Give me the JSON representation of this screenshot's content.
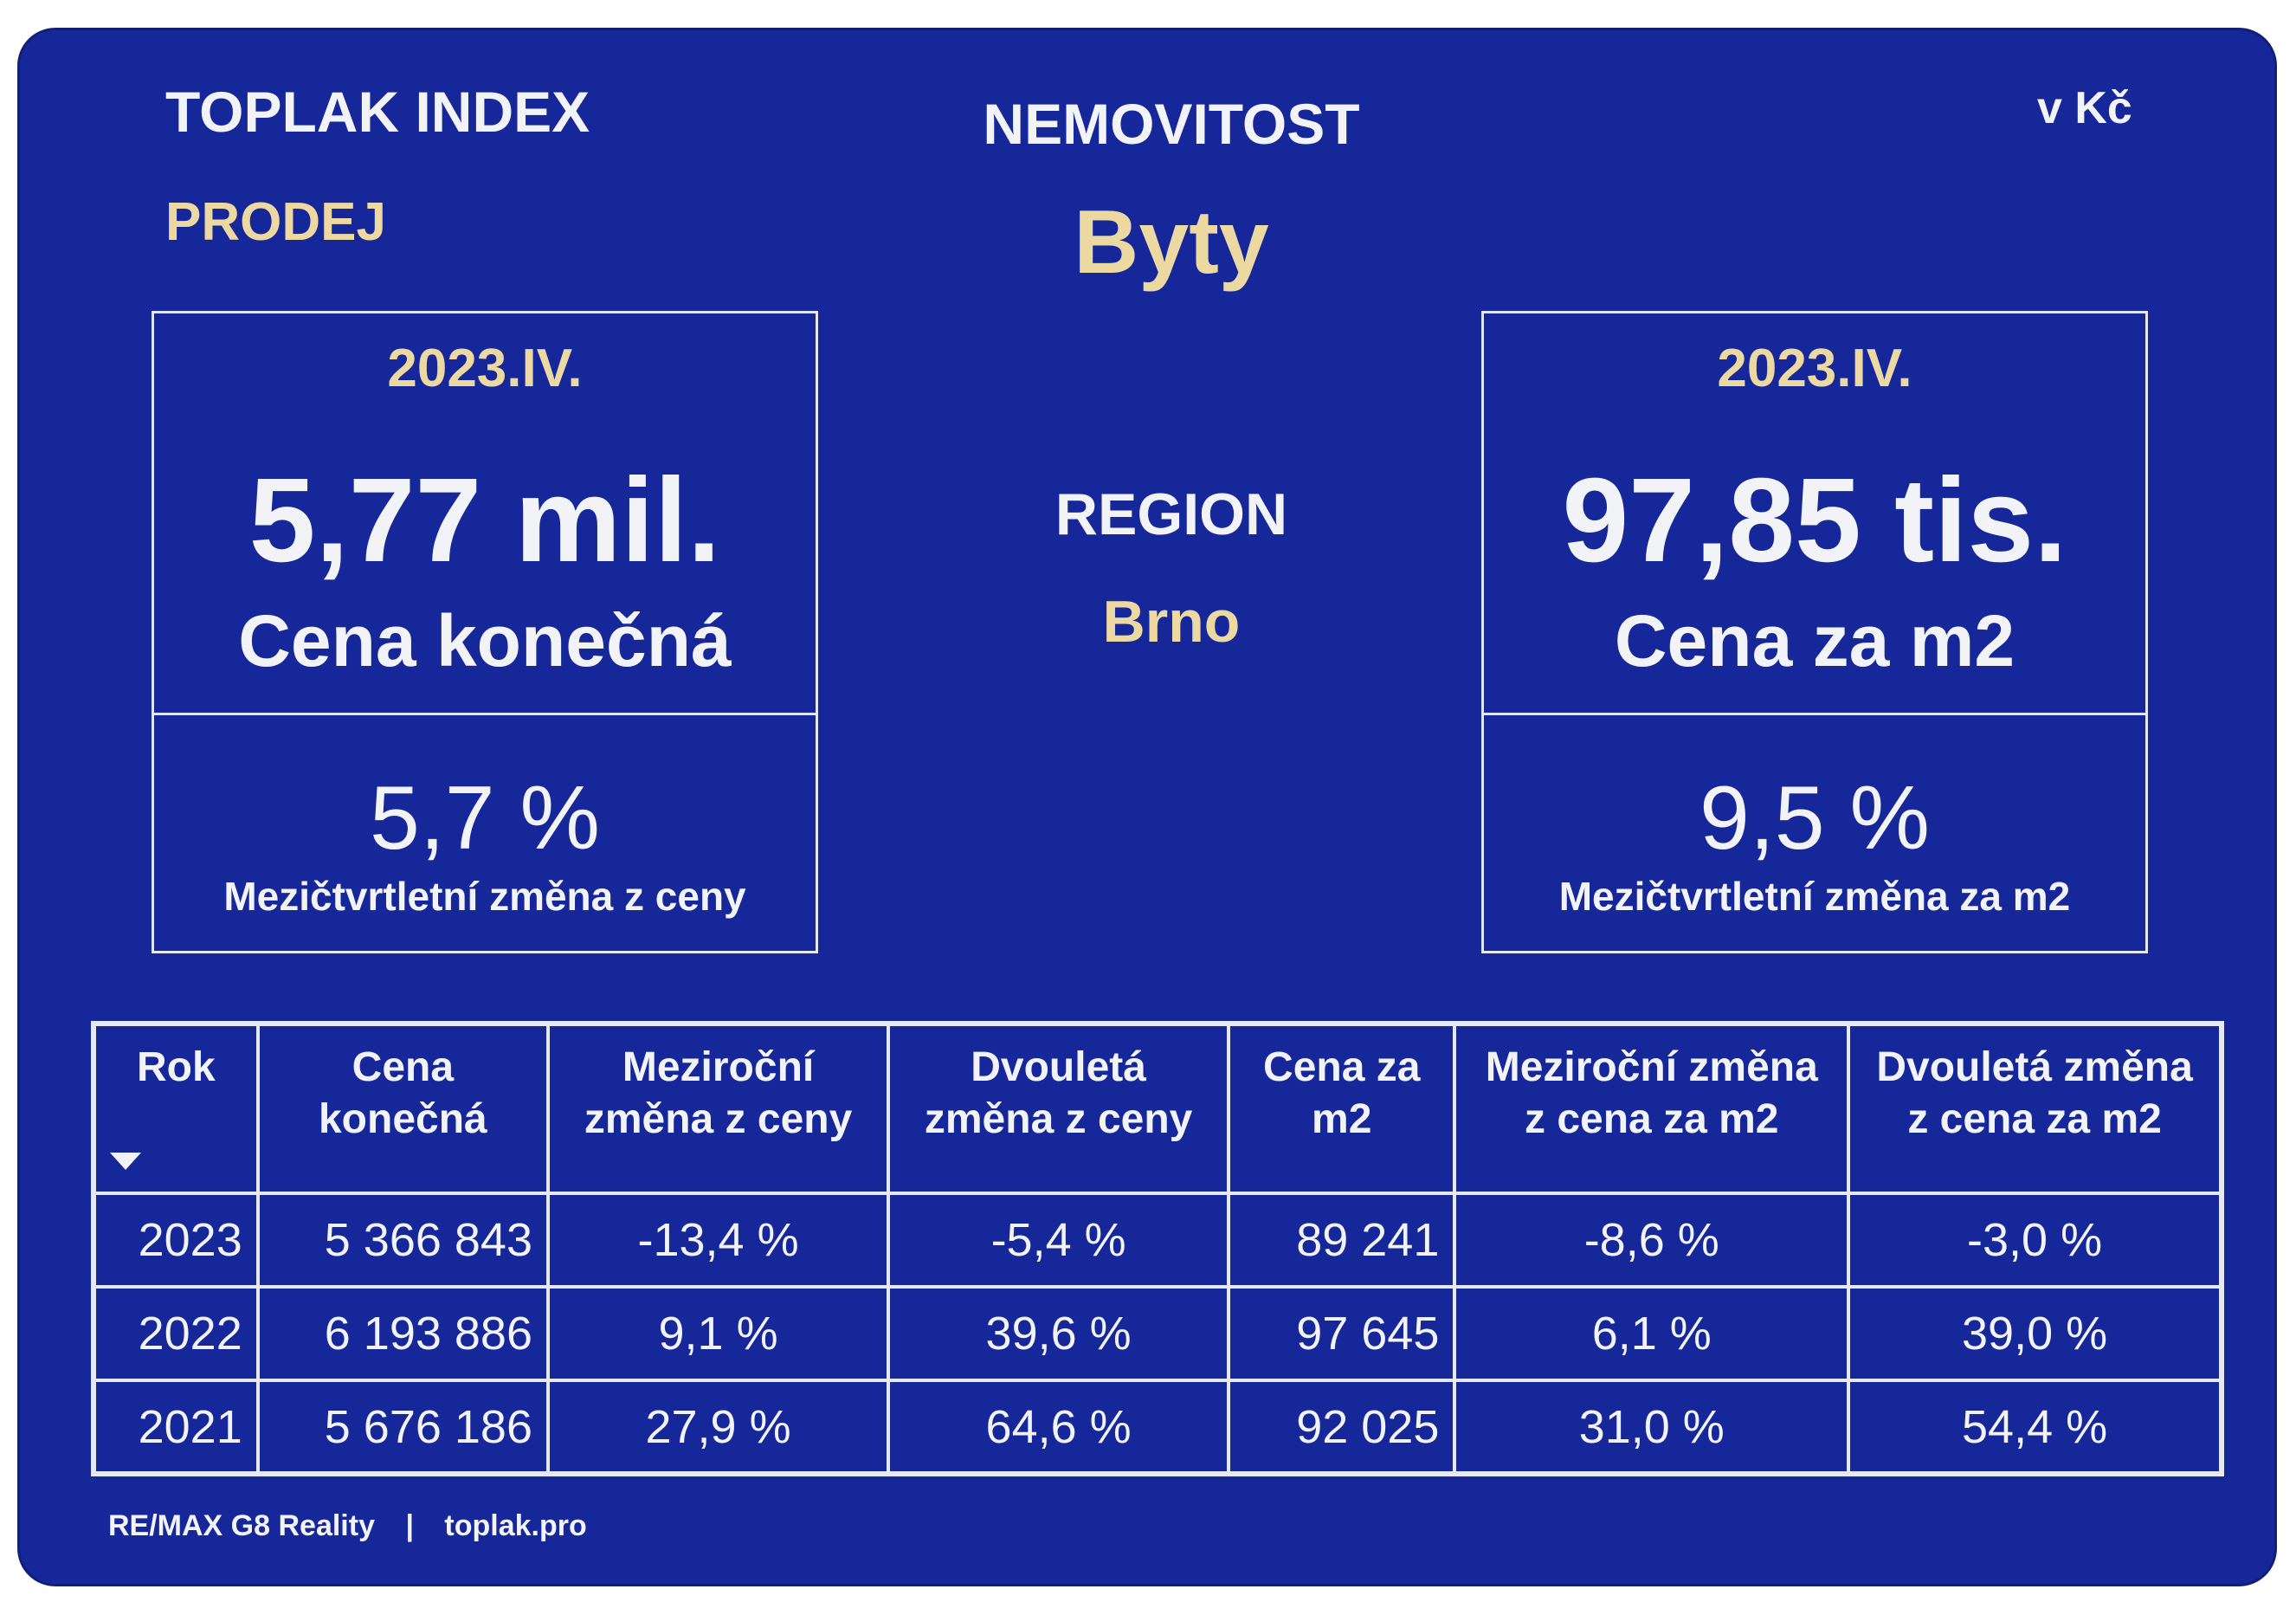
{
  "header": {
    "title": "TOPLAK INDEX",
    "subtitle": "PRODEJ",
    "category_label": "NEMOVITOST",
    "category_value": "Byty",
    "unit": "v Kč"
  },
  "region": {
    "label": "REGION",
    "value": "Brno"
  },
  "left_card": {
    "period": "2023.IV.",
    "value": "5,77 mil.",
    "label": "Cena konečná",
    "change_value": "5,7 %",
    "change_label": "Mezičtvrtletní změna z ceny"
  },
  "right_card": {
    "period": "2023.IV.",
    "value": "97,85 tis.",
    "label": "Cena za m2",
    "change_value": "9,5 %",
    "change_label": "Mezičtvrtletní změna za m2"
  },
  "table": {
    "headers": [
      [
        "Rok",
        ""
      ],
      [
        "Cena",
        "konečná"
      ],
      [
        "Meziroční",
        "změna z ceny"
      ],
      [
        "Dvouletá",
        "změna z ceny"
      ],
      [
        "Cena za",
        "m2"
      ],
      [
        "Meziroční změna",
        "z cena za m2"
      ],
      [
        "Dvouletá změna",
        "z cena za m2"
      ]
    ],
    "rows": [
      [
        "2023",
        "5 366 843",
        "-13,4 %",
        "-5,4 %",
        "89 241",
        "-8,6 %",
        "-3,0 %"
      ],
      [
        "2022",
        "6 193 886",
        "9,1 %",
        "39,6 %",
        "97 645",
        "6,1 %",
        "39,0 %"
      ],
      [
        "2021",
        "5 676 186",
        "27,9 %",
        "64,6 %",
        "92 025",
        "31,0 %",
        "54,4 %"
      ]
    ]
  },
  "footer": {
    "company": "RE/MAX G8 Reality",
    "separator": "|",
    "site": "toplak.pro"
  },
  "colors": {
    "background": "#16279a",
    "accent": "#ecd9a2",
    "text": "#f2f3f7"
  }
}
